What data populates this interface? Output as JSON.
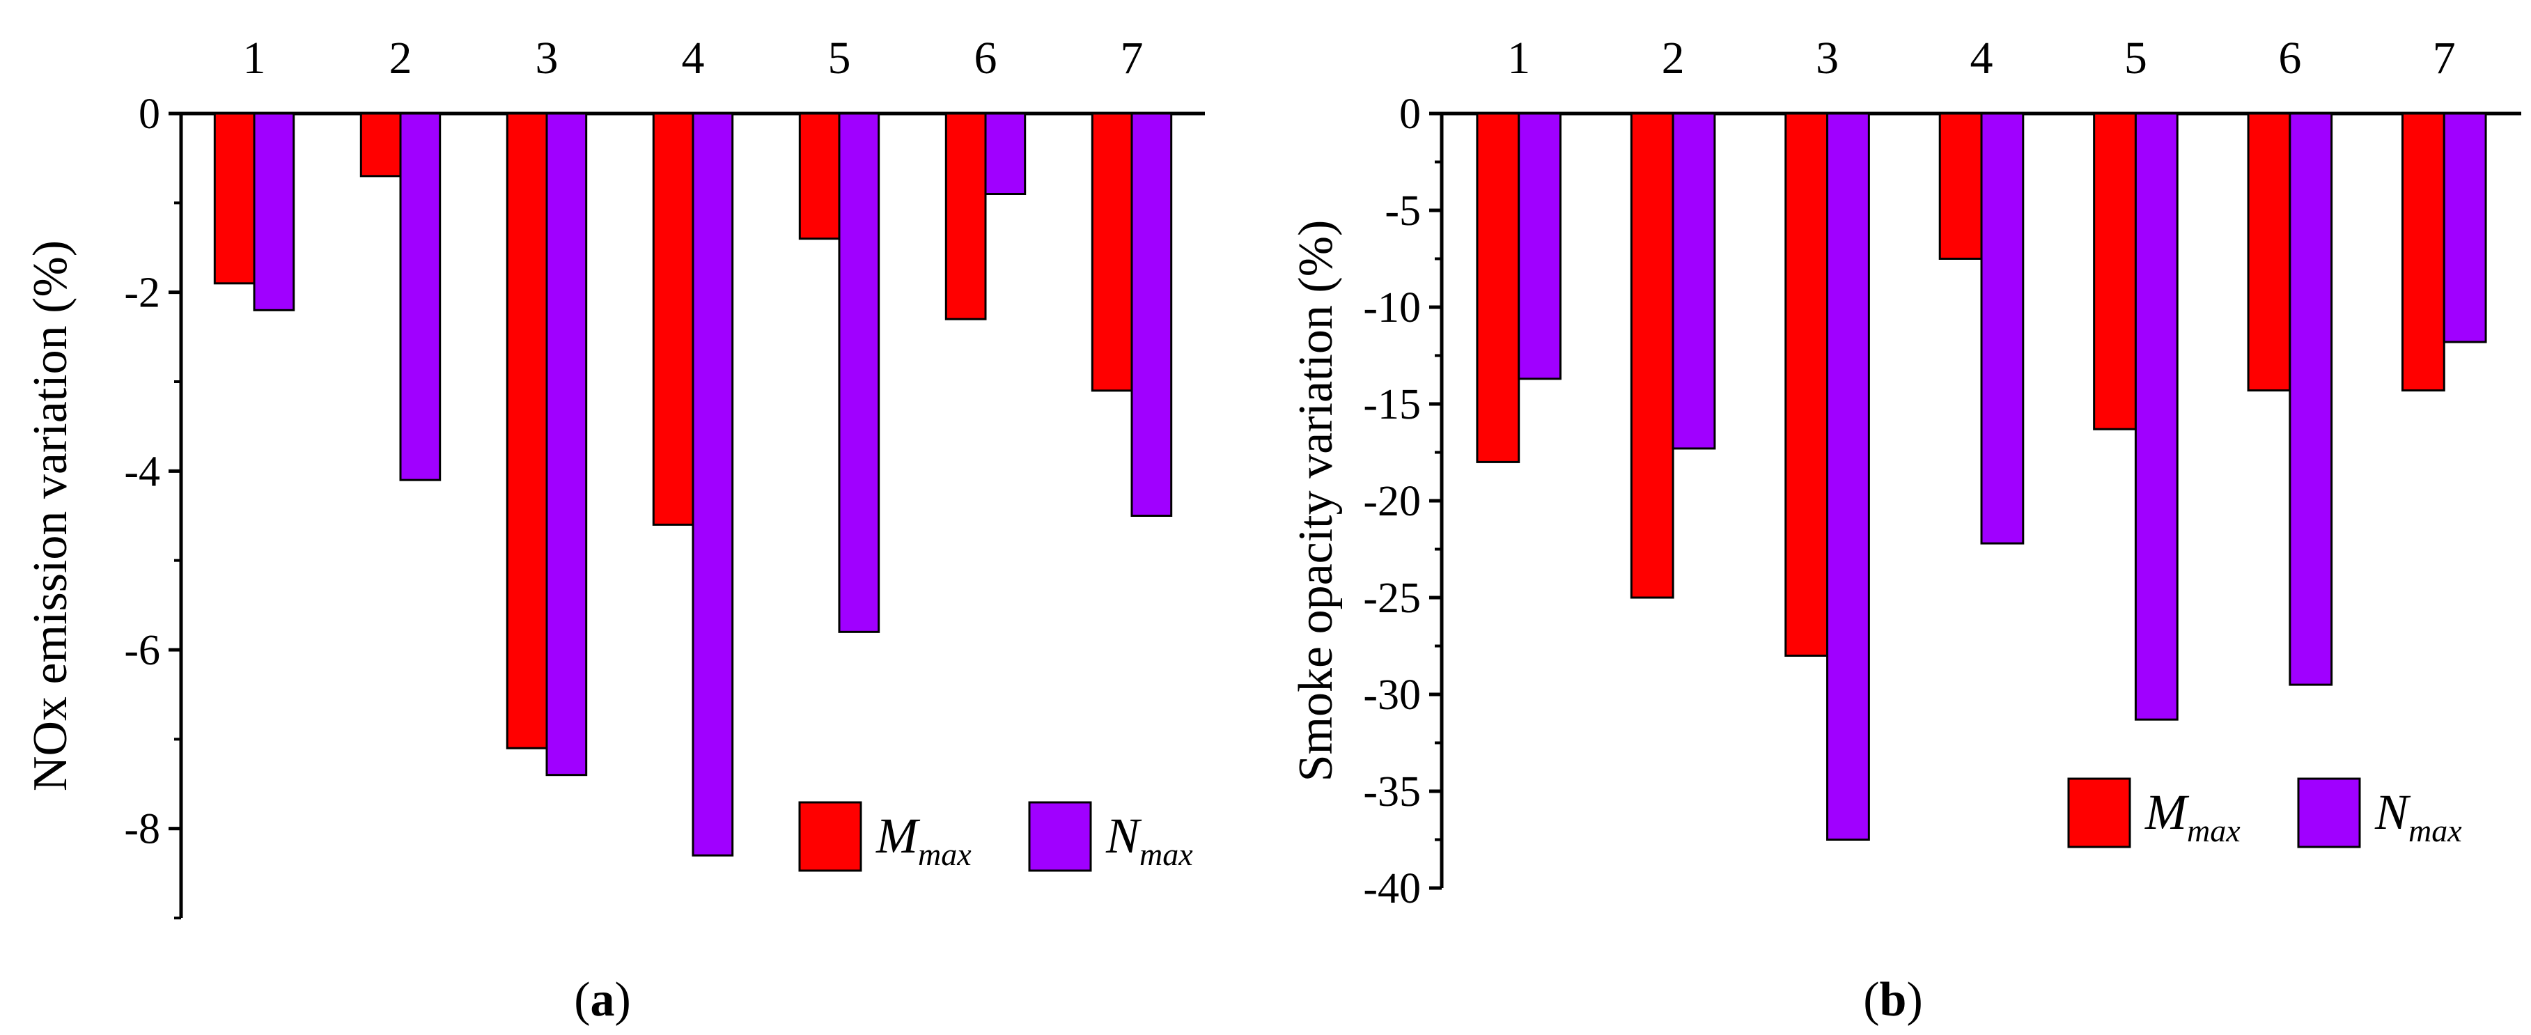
{
  "colors": {
    "mmax": "#ff0000",
    "nmax": "#a000ff",
    "axis": "#000000"
  },
  "legend": {
    "items": [
      {
        "main": "M",
        "sub": "max",
        "color": "#ff0000"
      },
      {
        "main": "N",
        "sub": "max",
        "color": "#a000ff"
      }
    ]
  },
  "chart_data": [
    {
      "type": "bar",
      "panel": "a",
      "panel_label": {
        "open": "(",
        "letter": "a",
        "close": ")"
      },
      "ylabel": "NOx emission variation (%)",
      "xlabel": "",
      "categories": [
        "1",
        "2",
        "3",
        "4",
        "5",
        "6",
        "7"
      ],
      "ylim": [
        -9,
        0
      ],
      "yticks": [
        0,
        -2,
        -4,
        -6,
        -8
      ],
      "ytick_labels": [
        "0",
        "-2",
        "-4",
        "-6",
        "-8"
      ],
      "x_axis_position": "top",
      "legend_position": "bottom-right",
      "series": [
        {
          "name": "Mmax",
          "values": [
            -1.9,
            -0.7,
            -7.1,
            -4.6,
            -1.4,
            -2.3,
            -3.1
          ]
        },
        {
          "name": "Nmax",
          "values": [
            -2.2,
            -4.1,
            -7.4,
            -8.3,
            -5.8,
            -0.9,
            -4.5
          ]
        }
      ]
    },
    {
      "type": "bar",
      "panel": "b",
      "panel_label": {
        "open": "(",
        "letter": "b",
        "close": ")"
      },
      "ylabel": "Smoke opacity variation (%)",
      "xlabel": "",
      "categories": [
        "1",
        "2",
        "3",
        "4",
        "5",
        "6",
        "7"
      ],
      "ylim": [
        -40,
        0
      ],
      "yticks": [
        0,
        -5,
        -10,
        -15,
        -20,
        -25,
        -30,
        -35,
        -40
      ],
      "ytick_labels": [
        "0",
        "-5",
        "-10",
        "-15",
        "-20",
        "-25",
        "-30",
        "-35",
        "-40"
      ],
      "x_axis_position": "top",
      "legend_position": "bottom-right",
      "series": [
        {
          "name": "Mmax",
          "values": [
            -18,
            -25,
            -28,
            -7.5,
            -16.3,
            -14.3,
            -14.3
          ]
        },
        {
          "name": "Nmax",
          "values": [
            -13.7,
            -17.3,
            -37.5,
            -22.2,
            -31.3,
            -29.5,
            -11.8
          ]
        }
      ]
    }
  ]
}
